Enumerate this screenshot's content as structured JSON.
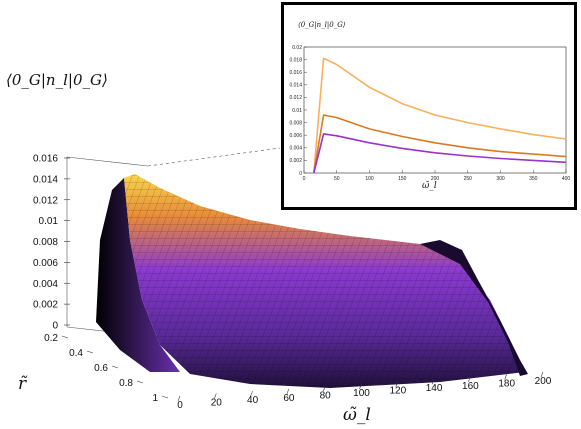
{
  "chart_data": [
    {
      "type": "surface",
      "zlabel": "⟨0_G|n_l|0_G⟩",
      "xlabel": "ω̃_l",
      "ylabel": "r̃",
      "x_ticks": [
        "0",
        "20",
        "40",
        "60",
        "80",
        "100",
        "120",
        "140",
        "160",
        "180",
        "200"
      ],
      "y_ticks": [
        "0.2",
        "0.4",
        "0.6",
        "0.8",
        "1"
      ],
      "z_ticks": [
        "0",
        "0.002",
        "0.004",
        "0.006",
        "0.008",
        "0.01",
        "0.012",
        "0.014",
        "0.016"
      ],
      "xlim": [
        0,
        200
      ],
      "ylim": [
        0.2,
        1
      ],
      "zlim": [
        0,
        0.016
      ],
      "colormap": [
        "#000000",
        "#5a2a9a",
        "#9a3ad8",
        "#d86a3a",
        "#f5d84a"
      ]
    },
    {
      "type": "line",
      "ylabel": "⟨0_G|n_l|0_G⟩",
      "xlabel": "ω̃_l",
      "x_ticks": [
        "0",
        "50",
        "100",
        "150",
        "200",
        "250",
        "300",
        "350",
        "400"
      ],
      "y_ticks": [
        "0",
        "0.002",
        "0.004",
        "0.006",
        "0.008",
        "0.01",
        "0.012",
        "0.014",
        "0.016",
        "0.018",
        "0.02"
      ],
      "xlim": [
        0,
        400
      ],
      "ylim": [
        0,
        0.02
      ],
      "series": [
        {
          "color": "#f7b15a",
          "x": [
            15,
            30,
            50,
            100,
            150,
            200,
            250,
            300,
            350,
            400
          ],
          "y": [
            0.0,
            0.0182,
            0.0172,
            0.0136,
            0.011,
            0.0092,
            0.008,
            0.007,
            0.0061,
            0.0054
          ]
        },
        {
          "color": "#d97a22",
          "x": [
            15,
            30,
            50,
            100,
            150,
            200,
            250,
            300,
            350,
            400
          ],
          "y": [
            0.0,
            0.0092,
            0.0088,
            0.007,
            0.0058,
            0.0048,
            0.004,
            0.0034,
            0.003,
            0.0026
          ]
        },
        {
          "color": "#9a32c8",
          "x": [
            15,
            30,
            50,
            100,
            150,
            200,
            250,
            300,
            350,
            400
          ],
          "y": [
            0.0,
            0.0062,
            0.0059,
            0.0048,
            0.0039,
            0.0032,
            0.0027,
            0.0023,
            0.002,
            0.0017
          ]
        }
      ]
    }
  ]
}
